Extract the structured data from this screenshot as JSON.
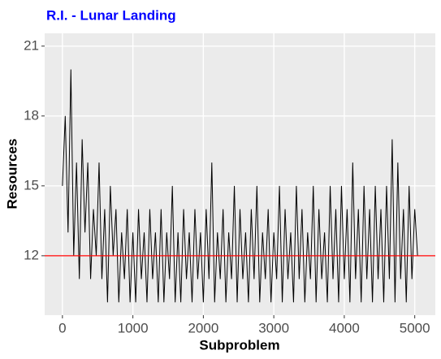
{
  "chart_data": {
    "type": "line",
    "title": "R.I. - Lunar Landing",
    "title_color": "#0000ff",
    "xlabel": "Subproblem",
    "ylabel": "Resources",
    "x": [
      0,
      40,
      80,
      120,
      160,
      200,
      240,
      280,
      320,
      360,
      400,
      440,
      480,
      520,
      560,
      600,
      640,
      680,
      720,
      760,
      800,
      840,
      880,
      920,
      960,
      1000,
      1040,
      1080,
      1120,
      1160,
      1200,
      1240,
      1280,
      1320,
      1360,
      1400,
      1440,
      1480,
      1520,
      1560,
      1600,
      1640,
      1680,
      1720,
      1760,
      1800,
      1840,
      1880,
      1920,
      1960,
      2000,
      2040,
      2080,
      2120,
      2160,
      2200,
      2240,
      2280,
      2320,
      2360,
      2400,
      2440,
      2480,
      2520,
      2560,
      2600,
      2640,
      2680,
      2720,
      2760,
      2800,
      2840,
      2880,
      2920,
      2960,
      3000,
      3040,
      3080,
      3120,
      3160,
      3200,
      3240,
      3280,
      3320,
      3360,
      3400,
      3440,
      3480,
      3520,
      3560,
      3600,
      3640,
      3680,
      3720,
      3760,
      3800,
      3840,
      3880,
      3920,
      3960,
      4000,
      4040,
      4080,
      4120,
      4160,
      4200,
      4240,
      4280,
      4320,
      4360,
      4400,
      4440,
      4480,
      4520,
      4560,
      4600,
      4640,
      4680,
      4720,
      4760,
      4800,
      4840,
      4880,
      4920,
      4960,
      5000,
      5040
    ],
    "series": [
      {
        "color": "#000000",
        "values": [
          15,
          18,
          13,
          20,
          12,
          16,
          11,
          17,
          13,
          16,
          11,
          14,
          12,
          16,
          11,
          14,
          10,
          15,
          12,
          14,
          10,
          13,
          11,
          14,
          10,
          13,
          10,
          14,
          11,
          13,
          10,
          14,
          11,
          13,
          10,
          14,
          10,
          13,
          11,
          15,
          10,
          13,
          10,
          14,
          11,
          13,
          10,
          14,
          11,
          13,
          10,
          14,
          11,
          16,
          10,
          13,
          11,
          14,
          10,
          13,
          11,
          15,
          10,
          14,
          11,
          13,
          10,
          14,
          11,
          15,
          10,
          13,
          11,
          14,
          10,
          13,
          11,
          15,
          10,
          14,
          11,
          13,
          10,
          15,
          11,
          14,
          10,
          13,
          11,
          15,
          10,
          14,
          11,
          13,
          10,
          15,
          11,
          14,
          10,
          15,
          11,
          14,
          10,
          16,
          11,
          14,
          10,
          15,
          11,
          14,
          10,
          15,
          11,
          14,
          10,
          15,
          11,
          17,
          10,
          16,
          11,
          14,
          10,
          15,
          11,
          14,
          12
        ]
      }
    ],
    "hline": 12,
    "hline_color": "#ff0000",
    "xlim": [
      -252,
      5292
    ],
    "ylim": [
      9.45,
      21.55
    ],
    "xticks": [
      0,
      1000,
      2000,
      3000,
      4000,
      5000
    ],
    "yticks": [
      12,
      15,
      18,
      21
    ],
    "grid": true
  }
}
